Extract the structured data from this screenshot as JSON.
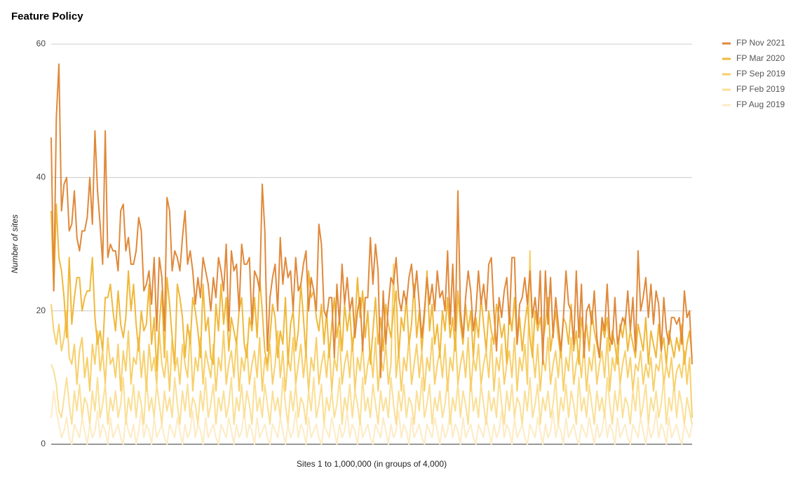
{
  "chart_data": {
    "type": "line",
    "title": "Feature Policy",
    "y_label": "Number of sites",
    "x_label": "Sites 1 to 1,000,000 (in groups of 4,000)",
    "ylim": [
      0,
      60
    ],
    "yticks": [
      0,
      20,
      40,
      60
    ],
    "grid": true,
    "legend": "right",
    "series": [
      {
        "name": "FP Nov 2021",
        "color": "#e0893a",
        "values": [
          46,
          23,
          49,
          57,
          35,
          39,
          40,
          32,
          33,
          38,
          31,
          29,
          32,
          32,
          34,
          40,
          33,
          47,
          38,
          33,
          27,
          47,
          28,
          30,
          29,
          29,
          26,
          35,
          36,
          29,
          31,
          27,
          27,
          29,
          34,
          32,
          23,
          24,
          26,
          21,
          28,
          17,
          28,
          25,
          17,
          37,
          35,
          26,
          29,
          28,
          26,
          31,
          35,
          27,
          29,
          26,
          21,
          25,
          22,
          28,
          26,
          24,
          20,
          25,
          22,
          28,
          26,
          23,
          30,
          17,
          29,
          26,
          27,
          20,
          30,
          27,
          27,
          28,
          18,
          26,
          25,
          23,
          39,
          32,
          14,
          22,
          25,
          27,
          20,
          31,
          24,
          28,
          25,
          26,
          20,
          28,
          23,
          24,
          27,
          29,
          20,
          25,
          23,
          20,
          33,
          30,
          20,
          19,
          22,
          22,
          13,
          24,
          18,
          27,
          21,
          25,
          20,
          22,
          16,
          20,
          22,
          14,
          22,
          22,
          31,
          24,
          30,
          26,
          10,
          23,
          15,
          21,
          25,
          24,
          28,
          22,
          20,
          23,
          21,
          25,
          27,
          22,
          26,
          21,
          16,
          20,
          25,
          21,
          24,
          20,
          26,
          22,
          23,
          20,
          29,
          18,
          27,
          17,
          38,
          20,
          16,
          22,
          26,
          23,
          17,
          20,
          26,
          21,
          24,
          20,
          27,
          28,
          20,
          14,
          22,
          19,
          23,
          25,
          18,
          28,
          28,
          15,
          21,
          22,
          25,
          21,
          26,
          19,
          22,
          18,
          26,
          12,
          26,
          18,
          25,
          16,
          22,
          18,
          14,
          19,
          26,
          21,
          20,
          15,
          26,
          16,
          24,
          13,
          20,
          21,
          18,
          23,
          16,
          13,
          19,
          17,
          24,
          16,
          15,
          22,
          15,
          17,
          19,
          18,
          23,
          17,
          22,
          14,
          29,
          20,
          22,
          25,
          19,
          24,
          18,
          23,
          21,
          14,
          22,
          17,
          15,
          19,
          19,
          18,
          19,
          15,
          23,
          19,
          20,
          12
        ]
      },
      {
        "name": "FP Mar 2020",
        "color": "#f0b83a",
        "values": [
          35,
          23,
          36,
          28,
          26,
          22,
          16,
          28,
          18,
          22,
          25,
          25,
          20,
          22,
          23,
          23,
          28,
          19,
          15,
          17,
          14,
          22,
          22,
          24,
          20,
          17,
          23,
          18,
          16,
          19,
          26,
          20,
          24,
          18,
          14,
          20,
          17,
          18,
          24,
          15,
          19,
          11,
          18,
          23,
          13,
          25,
          21,
          16,
          12,
          24,
          22,
          19,
          13,
          18,
          15,
          22,
          20,
          17,
          13,
          24,
          17,
          19,
          13,
          12,
          21,
          17,
          24,
          18,
          22,
          14,
          19,
          17,
          15,
          20,
          22,
          15,
          13,
          19,
          17,
          22,
          16,
          25,
          20,
          14,
          12,
          16,
          21,
          19,
          13,
          17,
          15,
          22,
          12,
          18,
          20,
          14,
          17,
          24,
          19,
          13,
          26,
          22,
          23,
          19,
          17,
          21,
          15,
          20,
          13,
          18,
          22,
          16,
          19,
          14,
          21,
          17,
          20,
          14,
          18,
          25,
          19,
          23,
          16,
          20,
          12,
          17,
          22,
          15,
          19,
          14,
          21,
          18,
          16,
          20,
          23,
          13,
          19,
          17,
          22,
          15,
          18,
          24,
          16,
          20,
          14,
          19,
          26,
          17,
          21,
          15,
          18,
          13,
          20,
          17,
          22,
          16,
          19,
          14,
          23,
          18,
          15,
          21,
          17,
          20,
          13,
          19,
          16,
          22,
          18,
          14,
          20,
          17,
          15,
          21,
          19,
          16,
          18,
          12,
          20,
          17,
          22,
          15,
          19,
          14,
          18,
          21,
          16,
          13,
          20,
          17,
          19,
          15,
          18,
          22,
          14,
          17,
          20,
          16,
          13,
          19,
          18,
          15,
          21,
          14,
          17,
          12,
          19,
          16,
          18,
          14,
          20,
          17,
          15,
          13,
          18,
          16,
          19,
          14,
          17,
          15,
          12,
          18,
          16,
          19,
          14,
          17,
          15,
          13,
          18,
          16,
          14,
          19,
          12,
          17,
          15,
          13,
          18,
          14,
          16,
          12,
          17,
          15,
          13,
          16,
          14,
          18,
          12,
          15,
          17,
          13
        ]
      },
      {
        "name": "FP Sep 2019",
        "color": "#f7cf6b",
        "values": [
          21,
          17,
          15,
          18,
          14,
          16,
          20,
          13,
          12,
          15,
          9,
          14,
          16,
          10,
          13,
          8,
          15,
          12,
          17,
          11,
          14,
          9,
          16,
          12,
          13,
          10,
          15,
          8,
          14,
          11,
          17,
          9,
          13,
          12,
          16,
          10,
          14,
          8,
          15,
          11,
          13,
          9,
          17,
          12,
          10,
          14,
          8,
          16,
          11,
          13,
          9,
          15,
          12,
          10,
          17,
          8,
          13,
          11,
          16,
          9,
          14,
          12,
          10,
          15,
          8,
          13,
          11,
          17,
          9,
          12,
          14,
          10,
          16,
          8,
          13,
          11,
          15,
          9,
          12,
          14,
          10,
          16,
          8,
          13,
          11,
          15,
          9,
          12,
          17,
          10,
          14,
          8,
          13,
          11,
          16,
          9,
          12,
          15,
          10,
          14,
          8,
          13,
          11,
          16,
          9,
          12,
          14,
          10,
          15,
          8,
          13,
          11,
          17,
          9,
          12,
          14,
          10,
          16,
          8,
          13,
          11,
          15,
          9,
          12,
          14,
          10,
          16,
          8,
          13,
          11,
          15,
          9,
          12,
          27,
          10,
          14,
          8,
          13,
          11,
          16,
          9,
          12,
          15,
          10,
          14,
          8,
          13,
          11,
          16,
          9,
          12,
          14,
          10,
          15,
          8,
          13,
          11,
          17,
          9,
          12,
          14,
          10,
          16,
          8,
          13,
          11,
          15,
          9,
          12,
          14,
          10,
          16,
          8,
          13,
          11,
          15,
          9,
          12,
          14,
          10,
          16,
          8,
          13,
          11,
          15,
          9,
          29,
          14,
          10,
          15,
          8,
          13,
          11,
          16,
          9,
          12,
          14,
          10,
          15,
          8,
          13,
          11,
          16,
          9,
          12,
          14,
          10,
          15,
          8,
          13,
          11,
          15,
          9,
          12,
          14,
          10,
          16,
          8,
          13,
          11,
          15,
          9,
          12,
          14,
          10,
          13,
          8,
          12,
          11,
          14,
          9,
          12,
          10,
          13,
          8,
          12,
          11,
          14,
          9,
          12,
          10,
          13,
          8,
          11,
          12,
          10,
          14,
          9,
          13,
          4
        ]
      },
      {
        "name": "FP Feb 2019",
        "color": "#fadf96",
        "values": [
          12,
          11,
          9,
          5,
          4,
          7,
          10,
          6,
          3,
          8,
          5,
          9,
          4,
          7,
          6,
          3,
          8,
          5,
          10,
          4,
          6,
          9,
          3,
          7,
          5,
          8,
          4,
          6,
          10,
          3,
          7,
          5,
          9,
          4,
          8,
          6,
          3,
          10,
          5,
          7,
          4,
          9,
          6,
          3,
          8,
          5,
          7,
          4,
          10,
          6,
          3,
          8,
          5,
          9,
          4,
          7,
          6,
          3,
          8,
          5,
          10,
          4,
          6,
          9,
          3,
          7,
          5,
          8,
          4,
          6,
          10,
          3,
          7,
          5,
          9,
          4,
          8,
          6,
          3,
          10,
          5,
          7,
          4,
          9,
          6,
          3,
          8,
          5,
          7,
          4,
          10,
          6,
          3,
          8,
          5,
          9,
          4,
          7,
          6,
          3,
          8,
          5,
          10,
          4,
          6,
          9,
          3,
          7,
          5,
          8,
          4,
          6,
          10,
          3,
          7,
          5,
          9,
          4,
          8,
          6,
          3,
          10,
          5,
          7,
          4,
          9,
          6,
          3,
          8,
          5,
          7,
          4,
          10,
          6,
          3,
          8,
          5,
          9,
          4,
          7,
          6,
          3,
          8,
          5,
          10,
          4,
          6,
          9,
          3,
          7,
          5,
          8,
          4,
          6,
          10,
          3,
          7,
          5,
          9,
          4,
          8,
          6,
          3,
          10,
          5,
          7,
          4,
          9,
          6,
          3,
          8,
          5,
          7,
          4,
          10,
          6,
          3,
          8,
          5,
          9,
          4,
          7,
          6,
          3,
          8,
          5,
          10,
          4,
          6,
          9,
          3,
          7,
          5,
          8,
          4,
          6,
          10,
          3,
          7,
          5,
          9,
          4,
          8,
          6,
          3,
          10,
          5,
          7,
          4,
          9,
          6,
          3,
          8,
          5,
          7,
          4,
          10,
          6,
          3,
          8,
          5,
          9,
          4,
          7,
          6,
          3,
          8,
          5,
          10,
          4,
          6,
          9,
          3,
          7,
          5,
          8,
          4,
          6,
          10,
          3,
          7,
          5,
          9,
          4,
          8,
          6,
          3,
          7,
          5,
          3
        ]
      },
      {
        "name": "FP Aug 2019",
        "color": "#fdebc4",
        "values": [
          4,
          8,
          5,
          3,
          1,
          2,
          4,
          1,
          0,
          3,
          2,
          1,
          4,
          2,
          0,
          3,
          1,
          2,
          5,
          1,
          3,
          2,
          0,
          4,
          1,
          2,
          3,
          1,
          0,
          4,
          2,
          1,
          3,
          0,
          2,
          5,
          1,
          3,
          2,
          0,
          4,
          1,
          2,
          3,
          1,
          0,
          3,
          2,
          1,
          4,
          2,
          0,
          3,
          1,
          2,
          5,
          1,
          3,
          2,
          0,
          4,
          1,
          2,
          3,
          1,
          0,
          3,
          2,
          1,
          4,
          2,
          0,
          3,
          1,
          2,
          5,
          1,
          3,
          2,
          0,
          4,
          1,
          2,
          3,
          1,
          0,
          3,
          2,
          1,
          4,
          2,
          0,
          3,
          1,
          2,
          5,
          1,
          3,
          2,
          0,
          4,
          1,
          2,
          3,
          1,
          0,
          3,
          2,
          1,
          4,
          2,
          0,
          3,
          1,
          2,
          5,
          1,
          3,
          2,
          0,
          4,
          1,
          2,
          3,
          1,
          0,
          3,
          2,
          1,
          4,
          2,
          0,
          3,
          1,
          2,
          5,
          1,
          3,
          2,
          0,
          4,
          1,
          2,
          3,
          1,
          0,
          3,
          2,
          1,
          4,
          2,
          0,
          3,
          1,
          2,
          5,
          1,
          3,
          2,
          0,
          4,
          1,
          2,
          3,
          1,
          0,
          3,
          2,
          1,
          4,
          2,
          0,
          3,
          1,
          2,
          5,
          1,
          3,
          2,
          0,
          4,
          1,
          2,
          3,
          1,
          0,
          3,
          2,
          1,
          4,
          2,
          0,
          3,
          1,
          2,
          5,
          1,
          3,
          2,
          0,
          4,
          1,
          2,
          3,
          1,
          0,
          3,
          2,
          1,
          4,
          2,
          0,
          3,
          1,
          2,
          5,
          1,
          3,
          2,
          0,
          4,
          1,
          2,
          3,
          1,
          0,
          3,
          2,
          1,
          4,
          2,
          0,
          3,
          1,
          2,
          5,
          1,
          3,
          2,
          0,
          4,
          1,
          2,
          3,
          1,
          0,
          3,
          2,
          1,
          3
        ]
      }
    ]
  }
}
